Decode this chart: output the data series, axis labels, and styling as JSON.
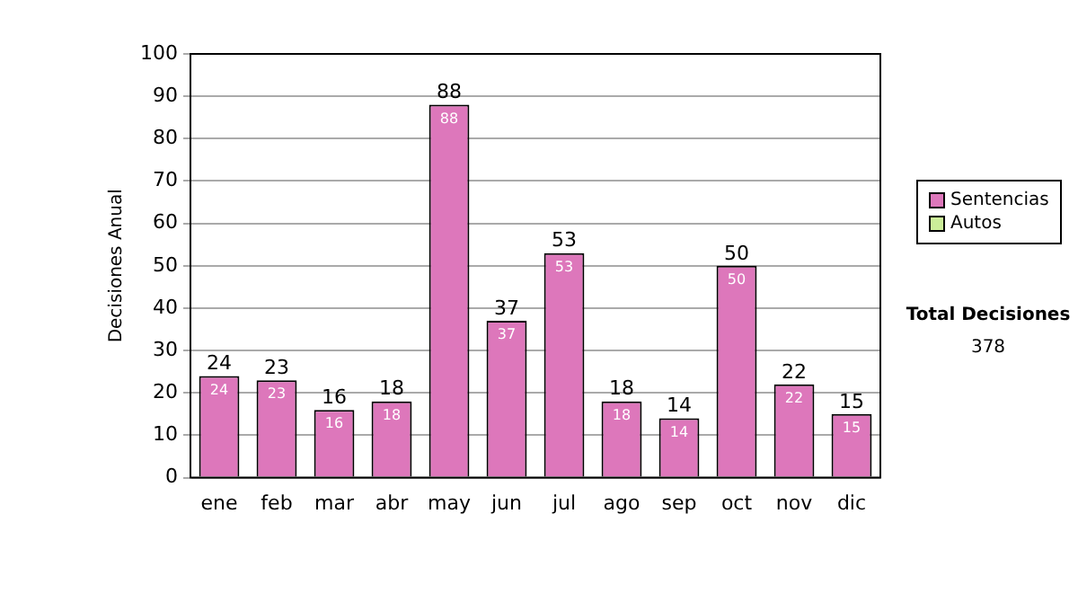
{
  "chart_data": {
    "type": "bar",
    "ylabel": "Decisiones Anual",
    "categories": [
      "ene",
      "feb",
      "mar",
      "abr",
      "may",
      "jun",
      "jul",
      "ago",
      "sep",
      "oct",
      "nov",
      "dic"
    ],
    "series": [
      {
        "name": "Sentencias",
        "color": "#dd77bb",
        "values": [
          24,
          23,
          16,
          18,
          88,
          37,
          53,
          18,
          14,
          50,
          22,
          15
        ],
        "value_labels": [
          "24",
          "23",
          "16",
          "18",
          "88",
          "37",
          "53",
          "18",
          "14",
          "50",
          "22",
          "15"
        ]
      },
      {
        "name": "Autos",
        "color": "#ccee99",
        "values": [
          0,
          0,
          0,
          0,
          0,
          0,
          0,
          0,
          0,
          0,
          0,
          0
        ]
      }
    ],
    "stacked": true,
    "totals": [
      "24",
      "23",
      "16",
      "18",
      "88",
      "37",
      "53",
      "18",
      "14",
      "50",
      "22",
      "15"
    ],
    "ylim": [
      0,
      100
    ],
    "yticks": [
      0,
      10,
      20,
      30,
      40,
      50,
      60,
      70,
      80,
      90,
      100
    ],
    "grid": "y",
    "legend": "right",
    "annotations": [
      "Total Decisiones",
      "378"
    ]
  }
}
